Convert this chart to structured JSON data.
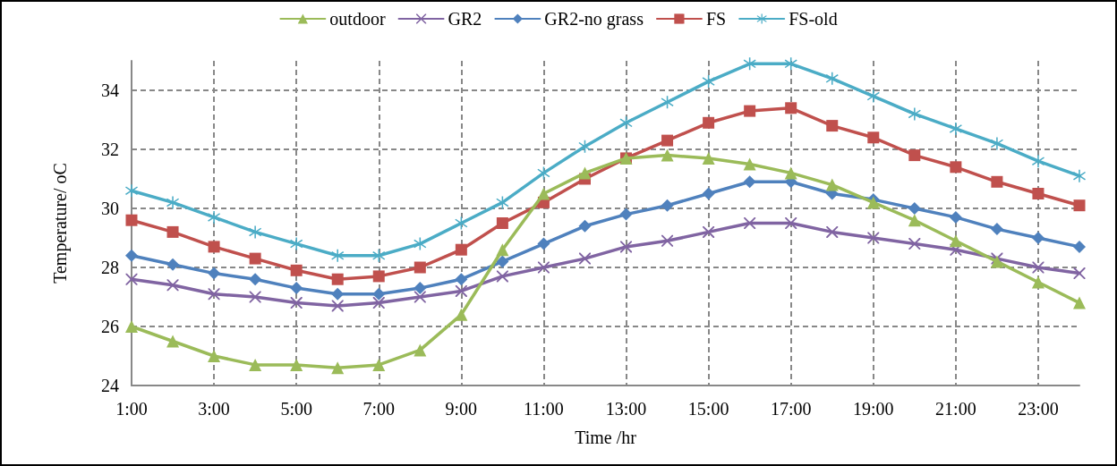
{
  "chart_data": {
    "type": "line",
    "xlabel": "Time /hr",
    "ylabel": "Temperature/ oC",
    "categories": [
      "1:00",
      null,
      "3:00",
      null,
      "5:00",
      null,
      "7:00",
      null,
      "9:00",
      null,
      "11:00",
      null,
      "13:00",
      null,
      "15:00",
      null,
      "17:00",
      null,
      "19:00",
      null,
      "21:00",
      null,
      "23:00",
      null
    ],
    "ylim": [
      24,
      35
    ],
    "yticks": [
      24,
      26,
      28,
      30,
      32,
      34
    ],
    "grid": true,
    "legend": "top",
    "line_style": "solid",
    "series": [
      {
        "name": "outdoor",
        "color": "#9bbb59",
        "marker": "triangle",
        "values": [
          26.0,
          25.5,
          25.0,
          24.7,
          24.7,
          24.6,
          24.7,
          25.2,
          26.4,
          28.6,
          30.5,
          31.2,
          31.7,
          31.8,
          31.7,
          31.5,
          31.2,
          30.8,
          30.2,
          29.6,
          28.9,
          28.2,
          27.5,
          26.8
        ]
      },
      {
        "name": "GR2",
        "color": "#8064a2",
        "marker": "cross",
        "values": [
          27.6,
          27.4,
          27.1,
          27.0,
          26.8,
          26.7,
          26.8,
          27.0,
          27.2,
          27.7,
          28.0,
          28.3,
          28.7,
          28.9,
          29.2,
          29.5,
          29.5,
          29.2,
          29.0,
          28.8,
          28.6,
          28.3,
          28.0,
          27.8
        ]
      },
      {
        "name": "GR2-no grass",
        "color": "#4f81bd",
        "marker": "diamond",
        "values": [
          28.4,
          28.1,
          27.8,
          27.6,
          27.3,
          27.1,
          27.1,
          27.3,
          27.6,
          28.2,
          28.8,
          29.4,
          29.8,
          30.1,
          30.5,
          30.9,
          30.9,
          30.5,
          30.3,
          30.0,
          29.7,
          29.3,
          29.0,
          28.7
        ]
      },
      {
        "name": "FS",
        "color": "#c0504d",
        "marker": "square",
        "values": [
          29.6,
          29.2,
          28.7,
          28.3,
          27.9,
          27.6,
          27.7,
          28.0,
          28.6,
          29.5,
          30.2,
          31.0,
          31.7,
          32.3,
          32.9,
          33.3,
          33.4,
          32.8,
          32.4,
          31.8,
          31.4,
          30.9,
          30.5,
          30.1
        ]
      },
      {
        "name": "FS-old",
        "color": "#4bacc6",
        "marker": "star",
        "values": [
          30.6,
          30.2,
          29.7,
          29.2,
          28.8,
          28.4,
          28.4,
          28.8,
          29.5,
          30.2,
          31.2,
          32.1,
          32.9,
          33.6,
          34.3,
          34.9,
          34.9,
          34.4,
          33.8,
          33.2,
          32.7,
          32.2,
          31.6,
          31.1
        ]
      }
    ]
  }
}
